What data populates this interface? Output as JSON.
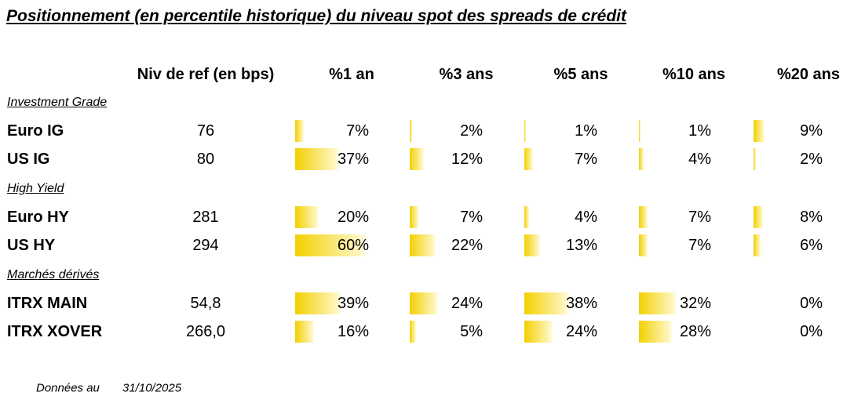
{
  "title": "Positionnement (en percentile historique) du niveau spot des spreads de crédit",
  "columns": [
    "Niv de ref (en bps)",
    "%1 an",
    "%3 ans",
    "%5 ans",
    "%10 ans",
    "%20 ans"
  ],
  "groups": [
    {
      "label": "Investment Grade",
      "rows": [
        {
          "name": "Euro IG",
          "ref": "76",
          "percentiles": [
            {
              "value": 7,
              "label": "7%"
            },
            {
              "value": 2,
              "label": "2%"
            },
            {
              "value": 1,
              "label": "1%"
            },
            {
              "value": 1,
              "label": "1%"
            },
            {
              "value": 9,
              "label": "9%"
            }
          ]
        },
        {
          "name": "US IG",
          "ref": "80",
          "percentiles": [
            {
              "value": 37,
              "label": "37%"
            },
            {
              "value": 12,
              "label": "12%"
            },
            {
              "value": 7,
              "label": "7%"
            },
            {
              "value": 4,
              "label": "4%"
            },
            {
              "value": 2,
              "label": "2%"
            }
          ]
        }
      ]
    },
    {
      "label": "High Yield",
      "rows": [
        {
          "name": "Euro HY",
          "ref": "281",
          "percentiles": [
            {
              "value": 20,
              "label": "20%"
            },
            {
              "value": 7,
              "label": "7%"
            },
            {
              "value": 4,
              "label": "4%"
            },
            {
              "value": 7,
              "label": "7%"
            },
            {
              "value": 8,
              "label": "8%"
            }
          ]
        },
        {
          "name": "US HY",
          "ref": "294",
          "percentiles": [
            {
              "value": 60,
              "label": "60%"
            },
            {
              "value": 22,
              "label": "22%"
            },
            {
              "value": 13,
              "label": "13%"
            },
            {
              "value": 7,
              "label": "7%"
            },
            {
              "value": 6,
              "label": "6%"
            }
          ]
        }
      ]
    },
    {
      "label": "Marchés dérivés",
      "rows": [
        {
          "name": "ITRX MAIN",
          "ref": "54,8",
          "percentiles": [
            {
              "value": 39,
              "label": "39%"
            },
            {
              "value": 24,
              "label": "24%"
            },
            {
              "value": 38,
              "label": "38%"
            },
            {
              "value": 32,
              "label": "32%"
            },
            {
              "value": 0,
              "label": "0%"
            }
          ]
        },
        {
          "name": "ITRX XOVER",
          "ref": "266,0",
          "percentiles": [
            {
              "value": 16,
              "label": "16%"
            },
            {
              "value": 5,
              "label": "5%"
            },
            {
              "value": 24,
              "label": "24%"
            },
            {
              "value": 28,
              "label": "28%"
            },
            {
              "value": 0,
              "label": "0%"
            }
          ]
        }
      ]
    }
  ],
  "footer": {
    "label": "Données au",
    "date": "31/10/2025"
  }
}
